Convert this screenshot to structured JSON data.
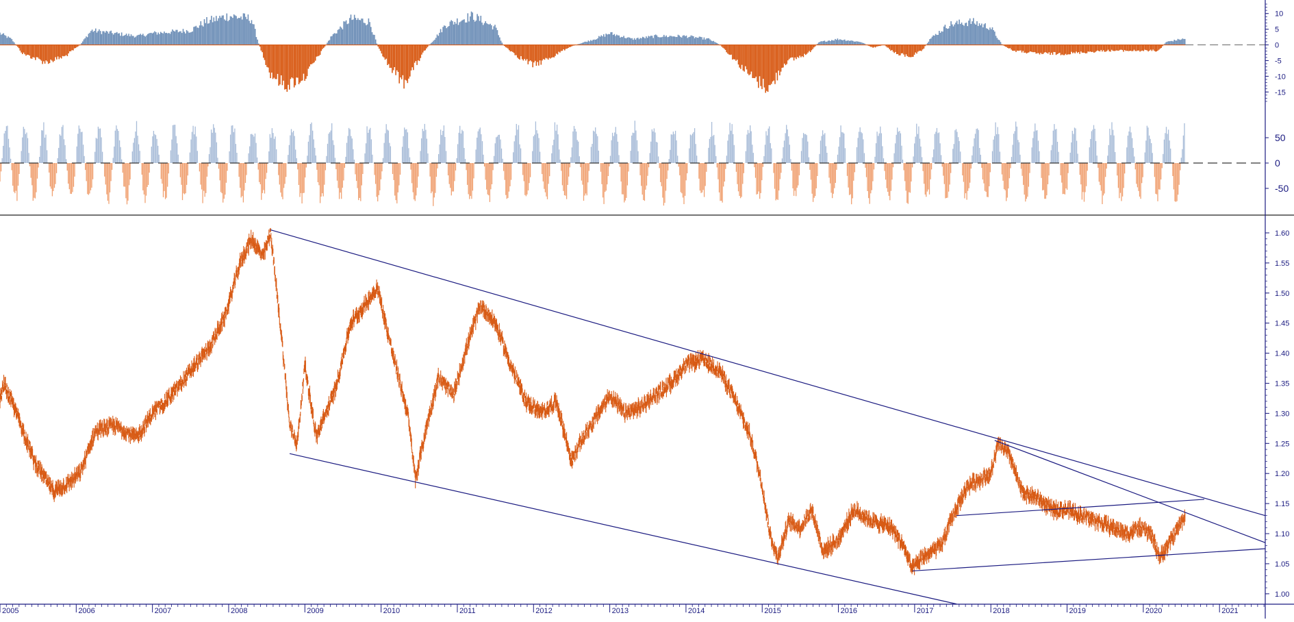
{
  "colors": {
    "price": "#d85a14",
    "positive": "#6f90b8",
    "negative": "#d85a14",
    "osc_positive": "#a8bcd8",
    "osc_negative": "#f0a070",
    "axis": "#1a1a80",
    "zero_line": "#666666",
    "trendline": "#1a1a80"
  },
  "chart_data": [
    {
      "type": "bar",
      "panel": "momentum-top",
      "ylim": [
        -18,
        13
      ],
      "ticks": [
        "10",
        "5",
        "0",
        "-5",
        "-10",
        "-15"
      ],
      "tick_values": [
        10,
        5,
        0,
        -5,
        -10,
        -15
      ],
      "zero_line": "dashed",
      "profile": [
        [
          2005.0,
          4
        ],
        [
          2005.15,
          2
        ],
        [
          2005.3,
          -3
        ],
        [
          2005.6,
          -6
        ],
        [
          2005.85,
          -4
        ],
        [
          2006.05,
          0
        ],
        [
          2006.2,
          5
        ],
        [
          2006.5,
          4
        ],
        [
          2006.8,
          3
        ],
        [
          2007.0,
          4
        ],
        [
          2007.5,
          5
        ],
        [
          2007.7,
          8
        ],
        [
          2008.0,
          10
        ],
        [
          2008.3,
          9
        ],
        [
          2008.4,
          0
        ],
        [
          2008.55,
          -10
        ],
        [
          2008.75,
          -14
        ],
        [
          2009.0,
          -11
        ],
        [
          2009.2,
          -3
        ],
        [
          2009.35,
          3
        ],
        [
          2009.6,
          9
        ],
        [
          2009.85,
          8
        ],
        [
          2009.95,
          0
        ],
        [
          2010.1,
          -7
        ],
        [
          2010.3,
          -13
        ],
        [
          2010.5,
          -5
        ],
        [
          2010.6,
          -1
        ],
        [
          2010.7,
          2
        ],
        [
          2010.85,
          7
        ],
        [
          2011.2,
          10
        ],
        [
          2011.5,
          6
        ],
        [
          2011.6,
          0
        ],
        [
          2011.8,
          -4
        ],
        [
          2012.0,
          -7
        ],
        [
          2012.25,
          -4
        ],
        [
          2012.45,
          -1
        ],
        [
          2012.55,
          0
        ],
        [
          2012.8,
          2
        ],
        [
          2013.0,
          4
        ],
        [
          2013.3,
          2
        ],
        [
          2013.6,
          3
        ],
        [
          2014.0,
          3
        ],
        [
          2014.3,
          2
        ],
        [
          2014.45,
          0
        ],
        [
          2014.6,
          -4
        ],
        [
          2014.9,
          -12
        ],
        [
          2015.1,
          -15
        ],
        [
          2015.3,
          -6
        ],
        [
          2015.6,
          -3
        ],
        [
          2015.75,
          1
        ],
        [
          2016.0,
          2
        ],
        [
          2016.3,
          1
        ],
        [
          2016.45,
          -1
        ],
        [
          2016.6,
          0
        ],
        [
          2016.75,
          -3
        ],
        [
          2016.95,
          -4
        ],
        [
          2017.1,
          -2
        ],
        [
          2017.2,
          2
        ],
        [
          2017.45,
          7
        ],
        [
          2017.75,
          8
        ],
        [
          2018.0,
          6
        ],
        [
          2018.15,
          0
        ],
        [
          2018.3,
          -2
        ],
        [
          2018.6,
          -3
        ],
        [
          2019.0,
          -3
        ],
        [
          2019.5,
          -2
        ],
        [
          2020.0,
          -2
        ],
        [
          2020.2,
          -2
        ],
        [
          2020.3,
          1
        ],
        [
          2020.5,
          2
        ]
      ]
    },
    {
      "type": "bar",
      "panel": "oscillator-middle",
      "ylim": [
        -100,
        100
      ],
      "ticks": [
        "50",
        "0",
        "-50"
      ],
      "tick_values": [
        50,
        0,
        -50
      ],
      "zero_line": "dashed",
      "cycle_years": 0.25
    },
    {
      "type": "line",
      "panel": "price-main",
      "x": [
        "2005",
        "2006",
        "2007",
        "2008",
        "2009",
        "2010",
        "2011",
        "2012",
        "2013",
        "2014",
        "2015",
        "2016",
        "2017",
        "2018",
        "2019",
        "2020",
        "2021"
      ],
      "xlim": [
        2005.0,
        2021.6
      ],
      "ylim": [
        0.985,
        1.625
      ],
      "ticks": [
        "1.60",
        "1.55",
        "1.50",
        "1.45",
        "1.40",
        "1.35",
        "1.30",
        "1.25",
        "1.20",
        "1.15",
        "1.10",
        "1.05",
        "1.00"
      ],
      "tick_values": [
        1.6,
        1.55,
        1.5,
        1.45,
        1.4,
        1.35,
        1.3,
        1.25,
        1.2,
        1.15,
        1.1,
        1.05,
        1.0
      ],
      "anchors": [
        [
          2005.0,
          1.32
        ],
        [
          2005.05,
          1.35
        ],
        [
          2005.25,
          1.29
        ],
        [
          2005.45,
          1.22
        ],
        [
          2005.7,
          1.17
        ],
        [
          2005.85,
          1.18
        ],
        [
          2006.05,
          1.2
        ],
        [
          2006.25,
          1.27
        ],
        [
          2006.5,
          1.28
        ],
        [
          2006.8,
          1.26
        ],
        [
          2007.0,
          1.3
        ],
        [
          2007.25,
          1.33
        ],
        [
          2007.5,
          1.37
        ],
        [
          2007.75,
          1.41
        ],
        [
          2007.95,
          1.46
        ],
        [
          2008.15,
          1.55
        ],
        [
          2008.3,
          1.59
        ],
        [
          2008.45,
          1.56
        ],
        [
          2008.55,
          1.6
        ],
        [
          2008.7,
          1.42
        ],
        [
          2008.8,
          1.28
        ],
        [
          2008.9,
          1.25
        ],
        [
          2009.0,
          1.38
        ],
        [
          2009.15,
          1.26
        ],
        [
          2009.4,
          1.34
        ],
        [
          2009.6,
          1.45
        ],
        [
          2009.85,
          1.49
        ],
        [
          2009.95,
          1.51
        ],
        [
          2010.15,
          1.4
        ],
        [
          2010.35,
          1.3
        ],
        [
          2010.45,
          1.19
        ],
        [
          2010.6,
          1.28
        ],
        [
          2010.75,
          1.36
        ],
        [
          2010.95,
          1.33
        ],
        [
          2011.1,
          1.4
        ],
        [
          2011.3,
          1.48
        ],
        [
          2011.5,
          1.45
        ],
        [
          2011.7,
          1.38
        ],
        [
          2011.9,
          1.32
        ],
        [
          2012.1,
          1.3
        ],
        [
          2012.3,
          1.32
        ],
        [
          2012.5,
          1.22
        ],
        [
          2012.65,
          1.26
        ],
        [
          2012.8,
          1.29
        ],
        [
          2013.0,
          1.33
        ],
        [
          2013.2,
          1.3
        ],
        [
          2013.4,
          1.31
        ],
        [
          2013.6,
          1.33
        ],
        [
          2013.8,
          1.35
        ],
        [
          2014.0,
          1.38
        ],
        [
          2014.2,
          1.39
        ],
        [
          2014.45,
          1.37
        ],
        [
          2014.65,
          1.32
        ],
        [
          2014.85,
          1.26
        ],
        [
          2015.0,
          1.18
        ],
        [
          2015.1,
          1.1
        ],
        [
          2015.2,
          1.06
        ],
        [
          2015.35,
          1.12
        ],
        [
          2015.5,
          1.11
        ],
        [
          2015.65,
          1.14
        ],
        [
          2015.8,
          1.07
        ],
        [
          2016.0,
          1.09
        ],
        [
          2016.2,
          1.14
        ],
        [
          2016.45,
          1.12
        ],
        [
          2016.7,
          1.11
        ],
        [
          2016.85,
          1.08
        ],
        [
          2016.97,
          1.04
        ],
        [
          2017.1,
          1.06
        ],
        [
          2017.35,
          1.08
        ],
        [
          2017.5,
          1.13
        ],
        [
          2017.7,
          1.18
        ],
        [
          2017.85,
          1.19
        ],
        [
          2018.0,
          1.2
        ],
        [
          2018.1,
          1.25
        ],
        [
          2018.25,
          1.23
        ],
        [
          2018.4,
          1.17
        ],
        [
          2018.6,
          1.16
        ],
        [
          2018.8,
          1.14
        ],
        [
          2019.0,
          1.14
        ],
        [
          2019.2,
          1.13
        ],
        [
          2019.4,
          1.12
        ],
        [
          2019.6,
          1.11
        ],
        [
          2019.8,
          1.1
        ],
        [
          2019.95,
          1.11
        ],
        [
          2020.1,
          1.1
        ],
        [
          2020.22,
          1.06
        ],
        [
          2020.32,
          1.08
        ],
        [
          2020.45,
          1.11
        ],
        [
          2020.55,
          1.13
        ]
      ],
      "trendlines": [
        {
          "name": "upper-channel",
          "x1": 2008.55,
          "y1": 1.605,
          "x2": 2021.6,
          "y2": 1.13
        },
        {
          "name": "lower-channel",
          "x1": 2008.8,
          "y1": 1.233,
          "x2": 2017.55,
          "y2": 0.983
        },
        {
          "name": "support-line",
          "x1": 2016.97,
          "y1": 1.038,
          "x2": 2021.6,
          "y2": 1.075
        },
        {
          "name": "resistance-2018",
          "x1": 2018.05,
          "y1": 1.255,
          "x2": 2021.6,
          "y2": 1.085
        },
        {
          "name": "range-top",
          "x1": 2017.55,
          "y1": 1.13,
          "x2": 2020.8,
          "y2": 1.157
        }
      ]
    }
  ],
  "x_axis": {
    "labels": [
      "2005",
      "2006",
      "2007",
      "2008",
      "2009",
      "2010",
      "2011",
      "2012",
      "2013",
      "2014",
      "2015",
      "2016",
      "2017",
      "2018",
      "2019",
      "2020",
      "2021"
    ]
  }
}
